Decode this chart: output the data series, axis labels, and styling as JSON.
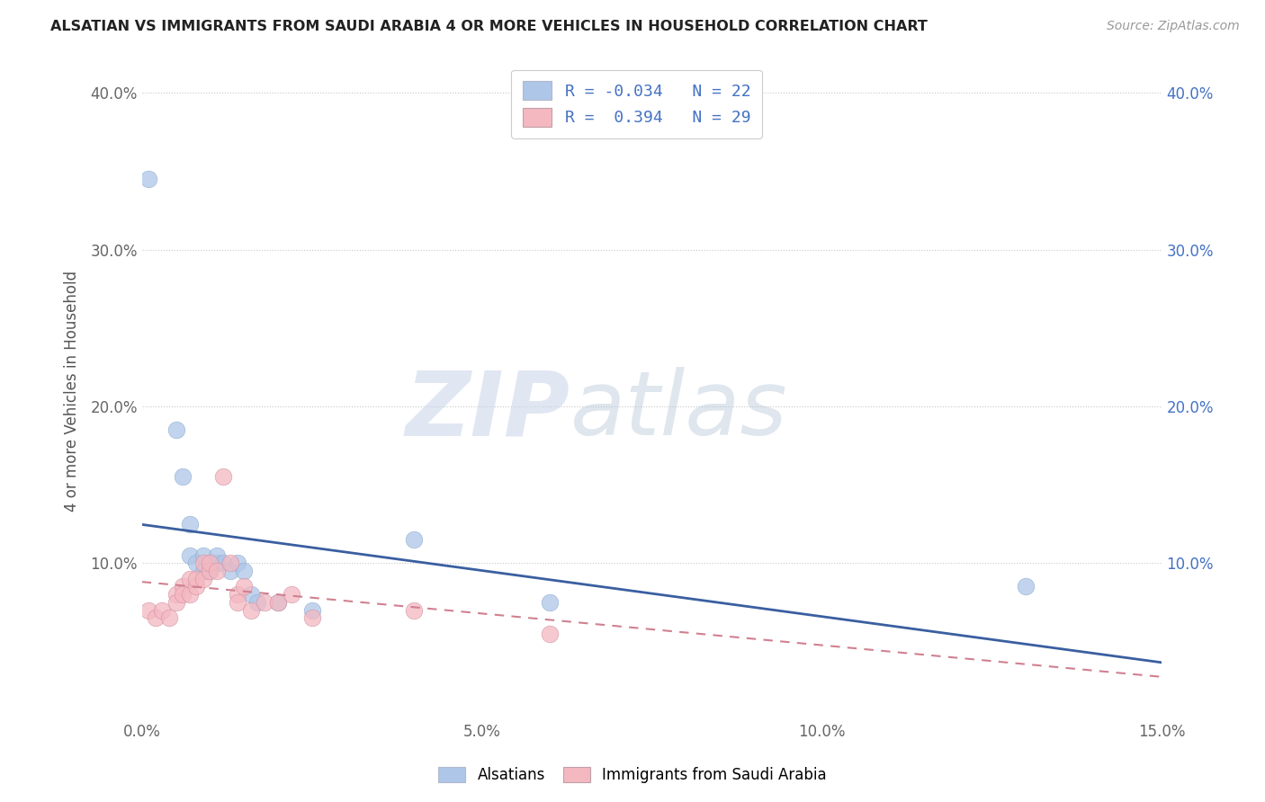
{
  "title": "ALSATIAN VS IMMIGRANTS FROM SAUDI ARABIA 4 OR MORE VEHICLES IN HOUSEHOLD CORRELATION CHART",
  "source": "Source: ZipAtlas.com",
  "ylabel": "4 or more Vehicles in Household",
  "xlim": [
    0.0,
    0.15
  ],
  "ylim": [
    0.0,
    0.42
  ],
  "x_ticks": [
    0.0,
    0.05,
    0.1,
    0.15
  ],
  "x_tick_labels": [
    "0.0%",
    "5.0%",
    "10.0%",
    "15.0%"
  ],
  "y_ticks": [
    0.0,
    0.1,
    0.2,
    0.3,
    0.4
  ],
  "y_tick_labels": [
    "",
    "10.0%",
    "20.0%",
    "30.0%",
    "40.0%"
  ],
  "blue_R": -0.034,
  "blue_N": 22,
  "pink_R": 0.394,
  "pink_N": 29,
  "blue_color": "#aec6e8",
  "pink_color": "#f4b8c1",
  "blue_line_color": "#3a5fa0",
  "pink_line_color": "#d08090",
  "blue_scatter": [
    [
      0.001,
      0.345
    ],
    [
      0.005,
      0.185
    ],
    [
      0.006,
      0.155
    ],
    [
      0.007,
      0.125
    ],
    [
      0.007,
      0.105
    ],
    [
      0.008,
      0.1
    ],
    [
      0.009,
      0.105
    ],
    [
      0.009,
      0.095
    ],
    [
      0.01,
      0.095
    ],
    [
      0.011,
      0.1
    ],
    [
      0.011,
      0.105
    ],
    [
      0.012,
      0.1
    ],
    [
      0.013,
      0.095
    ],
    [
      0.014,
      0.1
    ],
    [
      0.015,
      0.095
    ],
    [
      0.016,
      0.08
    ],
    [
      0.017,
      0.075
    ],
    [
      0.02,
      0.075
    ],
    [
      0.025,
      0.07
    ],
    [
      0.04,
      0.115
    ],
    [
      0.06,
      0.075
    ],
    [
      0.13,
      0.085
    ]
  ],
  "pink_scatter": [
    [
      0.001,
      0.07
    ],
    [
      0.002,
      0.065
    ],
    [
      0.003,
      0.07
    ],
    [
      0.004,
      0.065
    ],
    [
      0.005,
      0.08
    ],
    [
      0.005,
      0.075
    ],
    [
      0.006,
      0.085
    ],
    [
      0.006,
      0.08
    ],
    [
      0.007,
      0.08
    ],
    [
      0.007,
      0.09
    ],
    [
      0.008,
      0.085
    ],
    [
      0.008,
      0.09
    ],
    [
      0.009,
      0.09
    ],
    [
      0.009,
      0.1
    ],
    [
      0.01,
      0.095
    ],
    [
      0.01,
      0.1
    ],
    [
      0.011,
      0.095
    ],
    [
      0.012,
      0.155
    ],
    [
      0.013,
      0.1
    ],
    [
      0.014,
      0.08
    ],
    [
      0.014,
      0.075
    ],
    [
      0.015,
      0.085
    ],
    [
      0.016,
      0.07
    ],
    [
      0.018,
      0.075
    ],
    [
      0.02,
      0.075
    ],
    [
      0.022,
      0.08
    ],
    [
      0.025,
      0.065
    ],
    [
      0.04,
      0.07
    ],
    [
      0.06,
      0.055
    ]
  ],
  "right_y_ticks": [
    0.1,
    0.2,
    0.3,
    0.4
  ],
  "right_y_tick_labels": [
    "10.0%",
    "20.0%",
    "30.0%",
    "40.0%"
  ],
  "watermark_zip": "ZIP",
  "watermark_atlas": "atlas"
}
